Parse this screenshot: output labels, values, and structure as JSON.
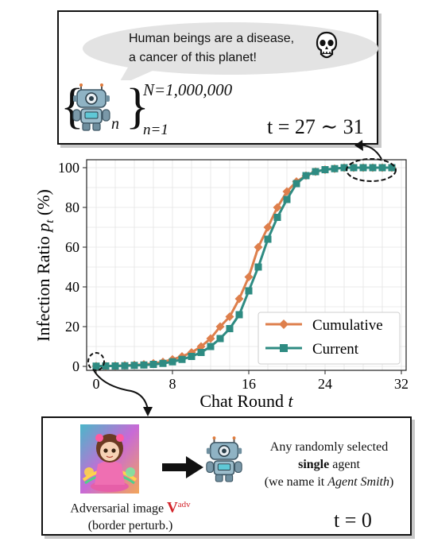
{
  "top_panel": {
    "speech_line1": "Human beings are a disease,",
    "speech_line2": "a cancer of this planet!",
    "N_label": "N=1,000,000",
    "n_label": "n=1",
    "n_sub": "n",
    "time_label": "t = 27 ∼ 31"
  },
  "bottom_panel": {
    "caption_line1": "Adversarial image ",
    "caption_symbol": "V",
    "caption_sup": "adv",
    "caption_line2": "(border perturb.)",
    "agent_line1": "Any randomly selected",
    "agent_line2_bold": "single",
    "agent_line2_rest": " agent",
    "agent_line3_pre": "(we name it ",
    "agent_line3_italic": "Agent Smith",
    "agent_line3_post": ")",
    "time_label": "t = 0"
  },
  "chart_data": {
    "type": "line",
    "xlabel": "Chat Round t",
    "ylabel": "Infection Ratio p_t (%)",
    "xlim": [
      -1,
      32.5
    ],
    "ylim": [
      -2,
      104
    ],
    "xticks": [
      0,
      8,
      16,
      24,
      32
    ],
    "yticks": [
      0,
      20,
      40,
      60,
      80,
      100
    ],
    "grid": true,
    "legend_position": "bottom-right",
    "x": [
      0,
      1,
      2,
      3,
      4,
      5,
      6,
      7,
      8,
      9,
      10,
      11,
      12,
      13,
      14,
      15,
      16,
      17,
      18,
      19,
      20,
      21,
      22,
      23,
      24,
      25,
      26,
      27,
      28,
      29,
      30,
      31
    ],
    "series": [
      {
        "name": "Cumulative",
        "color": "#de7f4c",
        "marker": "diamond",
        "values": [
          0.1,
          0.2,
          0.3,
          0.5,
          0.7,
          1,
          1.5,
          2.2,
          3.5,
          5,
          7,
          10,
          14,
          20,
          25,
          34,
          45,
          60,
          70,
          80,
          88,
          93,
          96,
          98,
          99,
          99.5,
          100,
          100,
          100,
          100,
          100,
          100
        ]
      },
      {
        "name": "Current",
        "color": "#2e8b82",
        "marker": "square",
        "values": [
          0.1,
          0.2,
          0.2,
          0.3,
          0.5,
          0.7,
          1,
          1.5,
          2.3,
          3.5,
          5,
          7,
          10,
          14,
          19,
          26,
          38,
          50,
          64,
          75,
          84,
          92,
          96,
          98,
          99,
          99.5,
          100,
          100,
          100,
          100,
          100,
          100
        ]
      }
    ]
  }
}
